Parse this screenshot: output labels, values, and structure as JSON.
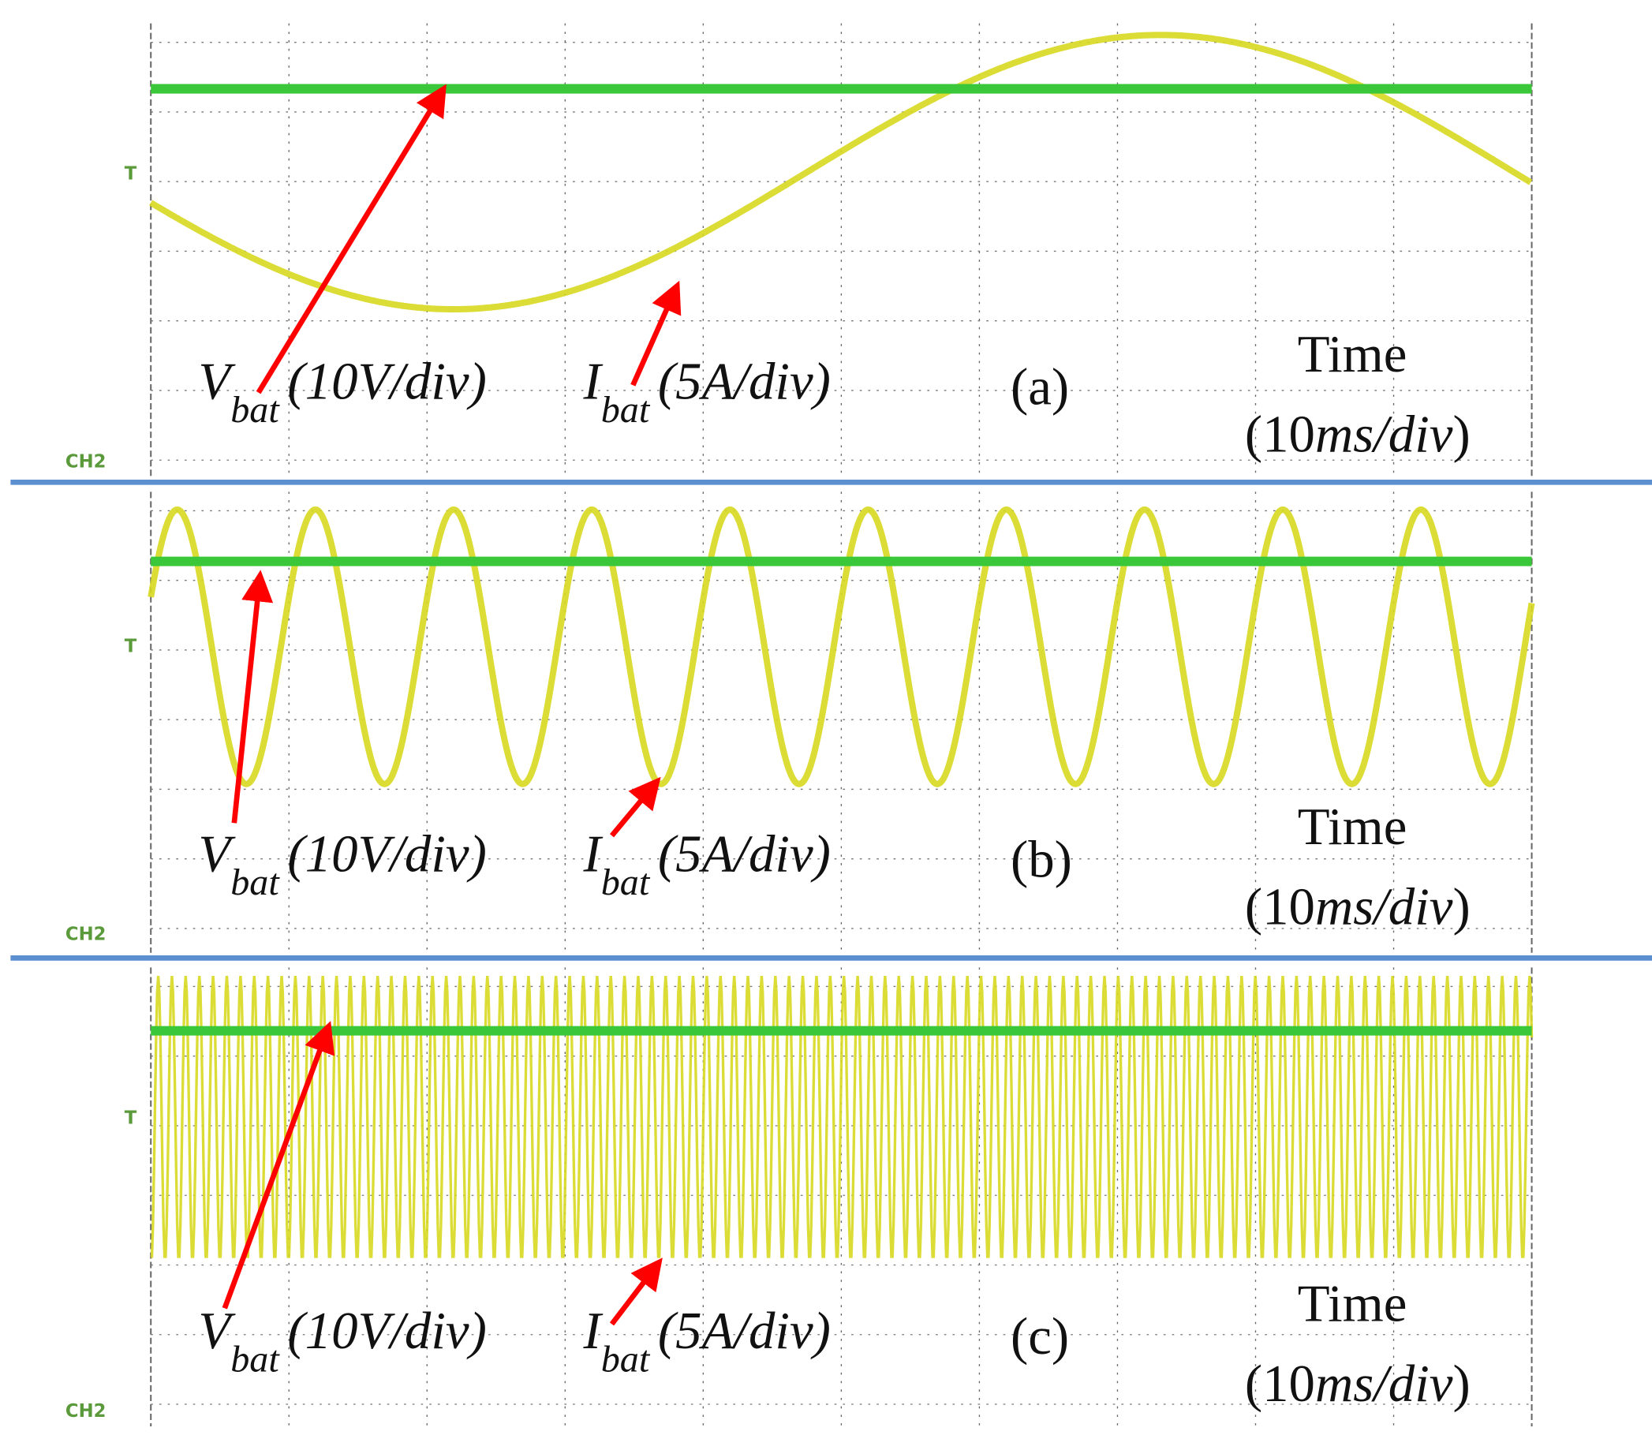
{
  "panels": [
    {
      "label": "(a)",
      "voltage": {
        "symbol": "V",
        "subscript": "bat",
        "scale": "(10V/div)"
      },
      "current": {
        "symbol": "I",
        "subscript": "bat",
        "scale": "(5A/div)"
      },
      "time": {
        "title": "Time",
        "scale_open": "(10",
        "scale_unit": "ms/div",
        "scale_close": ")"
      },
      "channel": "CH2"
    },
    {
      "label": "(b)",
      "voltage": {
        "symbol": "V",
        "subscript": "bat",
        "scale": "(10V/div)"
      },
      "current": {
        "symbol": "I",
        "subscript": "bat",
        "scale": "(5A/div)"
      },
      "time": {
        "title": "Time",
        "scale_open": "(10",
        "scale_unit": "ms/div",
        "scale_close": ")"
      },
      "channel": "CH2"
    },
    {
      "label": "(c)",
      "voltage": {
        "symbol": "V",
        "subscript": "bat",
        "scale": "(10V/div)"
      },
      "current": {
        "symbol": "I",
        "subscript": "bat",
        "scale": "(5A/div)"
      },
      "time": {
        "title": "Time",
        "scale_open": "(10",
        "scale_unit": "ms/div",
        "scale_close": ")"
      },
      "channel": "CH2"
    }
  ]
}
